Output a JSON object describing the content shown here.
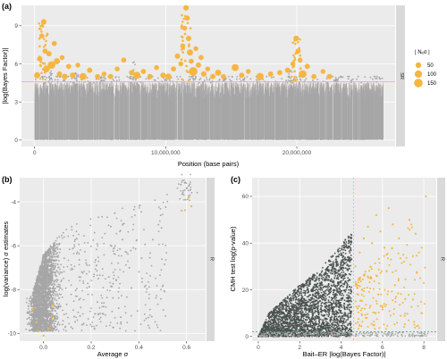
{
  "colors": {
    "panel_bg": "#ebebeb",
    "grid": "#ffffff",
    "strip_bg": "#d9d9d9",
    "gray_points": "#a6a6a6",
    "dark_points": "#4a524f",
    "orange": "#f5b642",
    "teal_line": "#5ca38f"
  },
  "chart_data": [
    {
      "id": "a",
      "type": "scatter",
      "panel_label": "(a)",
      "xlabel": "Position (base pairs)",
      "ylabel": "|log(Bayes Factor)|",
      "strip_label": "SR",
      "xlim": [
        -1000000,
        27500000
      ],
      "ylim": [
        -0.5,
        10.6
      ],
      "x_ticks": [
        0,
        10000000,
        20000000
      ],
      "x_tick_labels": [
        "0",
        "10,000,000",
        "20,000,000"
      ],
      "y_ticks": [
        0,
        3,
        6,
        9
      ],
      "y_tick_labels": [
        "0",
        "3",
        "6",
        "9"
      ],
      "threshold": 4.6,
      "gray_band": {
        "x_range": [
          0,
          26600000
        ],
        "y_range": [
          0,
          4.6
        ]
      },
      "gray_spikes": [
        {
          "x": 1200000,
          "y": 6.0
        },
        {
          "x": 3200000,
          "y": 5.3
        },
        {
          "x": 5200000,
          "y": 5.0
        },
        {
          "x": 7600000,
          "y": 6.5
        },
        {
          "x": 12000000,
          "y": 5.4
        },
        {
          "x": 14500000,
          "y": 4.9
        },
        {
          "x": 19500000,
          "y": 5.5
        },
        {
          "x": 23000000,
          "y": 4.8
        }
      ],
      "orange_points": [
        {
          "x": 200000,
          "y": 5.1,
          "n": 60
        },
        {
          "x": 400000,
          "y": 6.4,
          "n": 40
        },
        {
          "x": 550000,
          "y": 8.2,
          "n": 30
        },
        {
          "x": 700000,
          "y": 9.3,
          "n": 45
        },
        {
          "x": 800000,
          "y": 7.0,
          "n": 35
        },
        {
          "x": 900000,
          "y": 5.6,
          "n": 80
        },
        {
          "x": 1100000,
          "y": 6.8,
          "n": 40
        },
        {
          "x": 1300000,
          "y": 5.9,
          "n": 110
        },
        {
          "x": 1500000,
          "y": 7.6,
          "n": 35
        },
        {
          "x": 1700000,
          "y": 6.2,
          "n": 60
        },
        {
          "x": 1900000,
          "y": 5.2,
          "n": 40
        },
        {
          "x": 2100000,
          "y": 6.5,
          "n": 30
        },
        {
          "x": 2300000,
          "y": 5.0,
          "n": 50
        },
        {
          "x": 2600000,
          "y": 5.8,
          "n": 35
        },
        {
          "x": 2900000,
          "y": 5.1,
          "n": 45
        },
        {
          "x": 3300000,
          "y": 5.9,
          "n": 30
        },
        {
          "x": 3700000,
          "y": 5.0,
          "n": 90
        },
        {
          "x": 4200000,
          "y": 5.5,
          "n": 40
        },
        {
          "x": 4800000,
          "y": 5.0,
          "n": 35
        },
        {
          "x": 5300000,
          "y": 5.2,
          "n": 30
        },
        {
          "x": 5800000,
          "y": 5.0,
          "n": 40
        },
        {
          "x": 6300000,
          "y": 5.6,
          "n": 30
        },
        {
          "x": 6800000,
          "y": 6.3,
          "n": 35
        },
        {
          "x": 7400000,
          "y": 5.3,
          "n": 40
        },
        {
          "x": 7800000,
          "y": 5.1,
          "n": 90
        },
        {
          "x": 8300000,
          "y": 5.4,
          "n": 35
        },
        {
          "x": 8800000,
          "y": 5.0,
          "n": 40
        },
        {
          "x": 9300000,
          "y": 5.7,
          "n": 30
        },
        {
          "x": 9800000,
          "y": 5.1,
          "n": 45
        },
        {
          "x": 10200000,
          "y": 5.0,
          "n": 60
        },
        {
          "x": 10600000,
          "y": 5.6,
          "n": 35
        },
        {
          "x": 10900000,
          "y": 6.6,
          "n": 40
        },
        {
          "x": 11150000,
          "y": 6.0,
          "n": 30
        },
        {
          "x": 11300000,
          "y": 7.4,
          "n": 35
        },
        {
          "x": 11450000,
          "y": 8.8,
          "n": 30
        },
        {
          "x": 11550000,
          "y": 10.4,
          "n": 45
        },
        {
          "x": 11650000,
          "y": 9.6,
          "n": 35
        },
        {
          "x": 11750000,
          "y": 8.0,
          "n": 40
        },
        {
          "x": 11850000,
          "y": 6.9,
          "n": 60
        },
        {
          "x": 11950000,
          "y": 6.2,
          "n": 35
        },
        {
          "x": 12100000,
          "y": 5.4,
          "n": 150
        },
        {
          "x": 12300000,
          "y": 7.2,
          "n": 30
        },
        {
          "x": 12500000,
          "y": 5.9,
          "n": 40
        },
        {
          "x": 12700000,
          "y": 6.5,
          "n": 35
        },
        {
          "x": 12900000,
          "y": 5.2,
          "n": 45
        },
        {
          "x": 13200000,
          "y": 5.6,
          "n": 30
        },
        {
          "x": 13600000,
          "y": 5.0,
          "n": 40
        },
        {
          "x": 14000000,
          "y": 5.3,
          "n": 60
        },
        {
          "x": 14400000,
          "y": 5.0,
          "n": 35
        },
        {
          "x": 15300000,
          "y": 5.7,
          "n": 90
        },
        {
          "x": 15800000,
          "y": 5.1,
          "n": 40
        },
        {
          "x": 16300000,
          "y": 5.4,
          "n": 30
        },
        {
          "x": 17200000,
          "y": 5.0,
          "n": 100
        },
        {
          "x": 18000000,
          "y": 5.2,
          "n": 40
        },
        {
          "x": 18700000,
          "y": 5.3,
          "n": 35
        },
        {
          "x": 19300000,
          "y": 5.5,
          "n": 40
        },
        {
          "x": 19700000,
          "y": 6.0,
          "n": 30
        },
        {
          "x": 19950000,
          "y": 8.0,
          "n": 45
        },
        {
          "x": 20100000,
          "y": 7.0,
          "n": 35
        },
        {
          "x": 20250000,
          "y": 6.3,
          "n": 30
        },
        {
          "x": 20450000,
          "y": 5.2,
          "n": 110
        },
        {
          "x": 20800000,
          "y": 5.8,
          "n": 40
        },
        {
          "x": 21300000,
          "y": 5.0,
          "n": 35
        },
        {
          "x": 22000000,
          "y": 5.4,
          "n": 30
        },
        {
          "x": 22500000,
          "y": 5.0,
          "n": 40
        }
      ],
      "size_legend": {
        "title": "| Nₑσ |",
        "entries": [
          {
            "label": "50",
            "n": 50
          },
          {
            "label": "100",
            "n": 100
          },
          {
            "label": "150",
            "n": 150
          }
        ]
      },
      "grid": true
    },
    {
      "id": "b",
      "type": "scatter",
      "panel_label": "(b)",
      "xlabel": "Average σ",
      "ylabel": "log(variance) σ estimates",
      "strip_label": "R",
      "xlim": [
        -0.1,
        0.68
      ],
      "ylim": [
        -10.35,
        -2.9
      ],
      "x_ticks": [
        0.0,
        0.2,
        0.4,
        0.6
      ],
      "x_tick_labels": [
        "0.0",
        "0.2",
        "0.4",
        "0.6"
      ],
      "y_ticks": [
        -10,
        -8,
        -6,
        -4
      ],
      "y_tick_labels": [
        "-10",
        "-8",
        "-6",
        "-4"
      ],
      "cloud_center": [
        0.0,
        -9.0
      ],
      "upper_edge": [
        [
          -0.05,
          -8.3
        ],
        [
          0.0,
          -6.4
        ],
        [
          0.05,
          -5.7
        ],
        [
          0.1,
          -5.2
        ],
        [
          0.2,
          -4.7
        ],
        [
          0.3,
          -4.3
        ],
        [
          0.4,
          -4.0
        ],
        [
          0.5,
          -3.6
        ]
      ],
      "orange_points": [
        {
          "x": -0.03,
          "y": -9.5
        },
        {
          "x": -0.02,
          "y": -9.9
        },
        {
          "x": 0.0,
          "y": -10.1
        },
        {
          "x": 0.02,
          "y": -9.8
        },
        {
          "x": 0.035,
          "y": -9.3
        },
        {
          "x": -0.045,
          "y": -8.9
        },
        {
          "x": 0.04,
          "y": -8.7
        },
        {
          "x": 0.61,
          "y": -3.8
        },
        {
          "x": 0.62,
          "y": -4.2
        },
        {
          "x": 0.58,
          "y": -4.4
        }
      ],
      "outlier_cluster": {
        "x": 0.6,
        "y": -3.5
      },
      "grid": true
    },
    {
      "id": "c",
      "type": "scatter",
      "panel_label": "(c)",
      "xlabel": "Bait–ER |log(Bayes Factor)|",
      "ylabel": "CMH test log(p-value)",
      "strip_label": "R",
      "xlim": [
        -0.3,
        8.6
      ],
      "ylim": [
        -2,
        68
      ],
      "x_ticks": [
        0,
        2,
        4,
        6,
        8
      ],
      "x_tick_labels": [
        "0",
        "2",
        "4",
        "6",
        "8"
      ],
      "y_ticks": [
        0,
        20,
        40,
        60
      ],
      "y_tick_labels": [
        "0",
        "20",
        "40",
        "60"
      ],
      "vertical_threshold": 4.6,
      "horizontal_threshold": 2.0,
      "dark_cloud_top": [
        [
          0.5,
          10
        ],
        [
          1.0,
          14
        ],
        [
          2.0,
          22
        ],
        [
          3.0,
          29
        ],
        [
          3.8,
          37
        ],
        [
          4.4,
          44
        ]
      ],
      "orange_points": [
        {
          "x": 4.7,
          "y": 30
        },
        {
          "x": 4.9,
          "y": 36
        },
        {
          "x": 5.1,
          "y": 42
        },
        {
          "x": 5.3,
          "y": 47
        },
        {
          "x": 5.5,
          "y": 40
        },
        {
          "x": 5.7,
          "y": 52
        },
        {
          "x": 5.9,
          "y": 45
        },
        {
          "x": 6.1,
          "y": 38
        },
        {
          "x": 6.3,
          "y": 55
        },
        {
          "x": 6.5,
          "y": 48
        },
        {
          "x": 6.8,
          "y": 42
        },
        {
          "x": 7.0,
          "y": 35
        },
        {
          "x": 7.3,
          "y": 50
        },
        {
          "x": 7.6,
          "y": 44
        },
        {
          "x": 7.9,
          "y": 38
        },
        {
          "x": 8.1,
          "y": 60
        },
        {
          "x": 5.0,
          "y": 20
        },
        {
          "x": 5.4,
          "y": 25
        },
        {
          "x": 5.8,
          "y": 18
        },
        {
          "x": 6.2,
          "y": 28
        },
        {
          "x": 6.6,
          "y": 22
        },
        {
          "x": 7.1,
          "y": 16
        },
        {
          "x": 4.8,
          "y": 12
        },
        {
          "x": 5.2,
          "y": 8
        },
        {
          "x": 5.6,
          "y": 5
        }
      ],
      "grid": true
    }
  ]
}
